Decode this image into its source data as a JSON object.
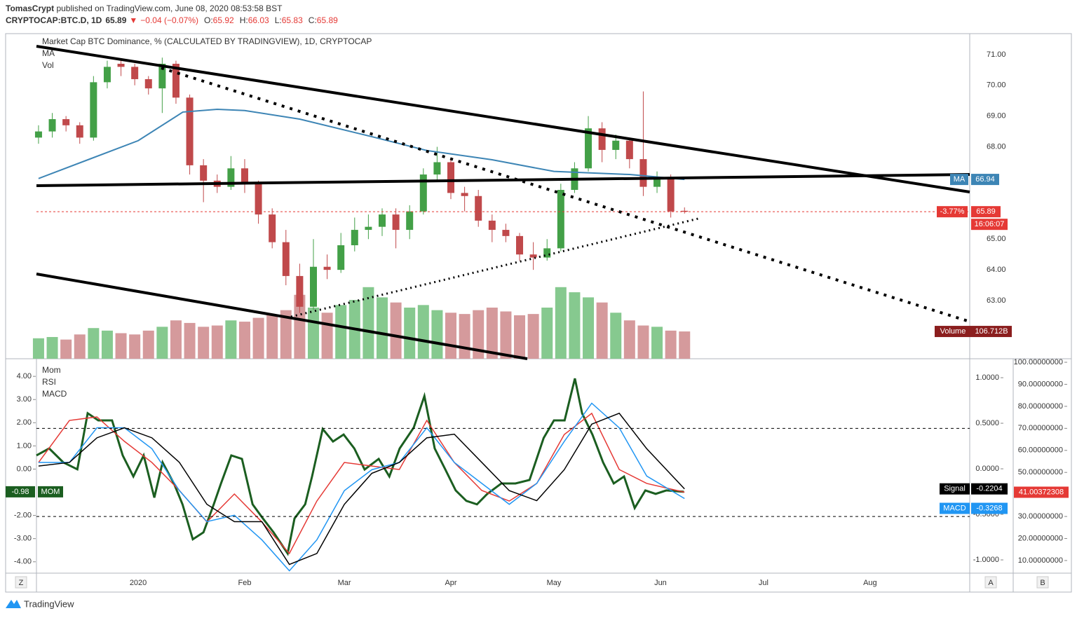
{
  "header": {
    "author": "TomasCrypt",
    "published": " published on TradingView.com, June 08, 2020 08:53:58 BST",
    "symbol": "CRYPTOCAP:BTC.D, 1D",
    "last": 65.89,
    "arrow": "▼",
    "change": "−0.04 (−0.07%)",
    "ohlc": [
      {
        "k": "O:",
        "v": 65.92
      },
      {
        "k": "H:",
        "v": 66.03
      },
      {
        "k": "L:",
        "v": 65.83
      },
      {
        "k": "C:",
        "v": 65.89
      }
    ]
  },
  "chart_data": [
    {
      "type": "candlestick",
      "title": "Market Cap BTC Dominance, % (CALCULATED BY TRADINGVIEW), 1D, CRYPTOCAP",
      "xlim": [
        -29.6,
        242
      ],
      "xticks": [
        {
          "value": 0,
          "label": "2020"
        },
        {
          "value": 31,
          "label": "Feb"
        },
        {
          "value": 60,
          "label": "Mar"
        },
        {
          "value": 91,
          "label": "Apr"
        },
        {
          "value": 121,
          "label": "May"
        },
        {
          "value": 152,
          "label": "Jun"
        },
        {
          "value": 182,
          "label": "Jul"
        },
        {
          "value": 213,
          "label": "Aug"
        }
      ],
      "ylim": [
        61.11,
        71.68
      ],
      "yticks": [
        {
          "value": 63,
          "label": "63.00"
        },
        {
          "value": 64,
          "label": "64.00"
        },
        {
          "value": 65,
          "label": "65.00"
        },
        {
          "value": 68,
          "label": "68.00"
        },
        {
          "value": 69,
          "label": "69.00"
        },
        {
          "value": 70,
          "label": "70.00"
        },
        {
          "value": 71,
          "label": "71.00"
        }
      ],
      "grid": true,
      "up_color": "#43a047",
      "down_color": "#c0494b",
      "x": [
        -29,
        -25,
        -21,
        -17,
        -13,
        -9,
        -5,
        -1,
        3,
        7,
        11,
        15,
        19,
        23,
        27,
        31,
        35,
        39,
        43,
        47,
        51,
        55,
        59,
        63,
        67,
        71,
        75,
        79,
        83,
        87,
        91,
        95,
        99,
        103,
        107,
        111,
        115,
        119,
        123,
        127,
        131,
        135,
        139,
        143,
        147,
        151,
        155,
        159
      ],
      "open": [
        68.3,
        68.5,
        68.9,
        68.7,
        68.3,
        70.1,
        70.7,
        70.6,
        70.2,
        69.9,
        70.7,
        69.6,
        67.4,
        66.9,
        66.7,
        67.3,
        66.8,
        65.8,
        64.9,
        63.8,
        62.8,
        64.1,
        64.0,
        64.8,
        65.3,
        65.4,
        65.8,
        65.3,
        65.9,
        67.1,
        67.5,
        66.5,
        66.4,
        65.6,
        65.3,
        65.1,
        64.5,
        64.4,
        64.7,
        66.6,
        67.3,
        68.6,
        67.9,
        68.2,
        67.6,
        66.7,
        67.0,
        65.92
      ],
      "high": [
        68.7,
        69.1,
        69.0,
        68.8,
        70.3,
        70.8,
        70.8,
        70.7,
        70.3,
        70.9,
        70.8,
        69.7,
        67.6,
        67.1,
        67.7,
        67.6,
        66.9,
        66.0,
        65.3,
        64.2,
        65.0,
        64.5,
        65.2,
        65.7,
        65.8,
        66.0,
        66.0,
        66.1,
        67.3,
        68.0,
        67.6,
        66.7,
        66.6,
        65.8,
        65.5,
        65.2,
        64.9,
        65.0,
        66.8,
        67.5,
        69.0,
        68.8,
        68.4,
        68.3,
        69.8,
        67.2,
        67.1,
        66.03
      ],
      "low": [
        68.1,
        68.3,
        68.5,
        68.1,
        68.2,
        69.9,
        70.3,
        70.0,
        69.7,
        69.1,
        69.4,
        67.1,
        66.2,
        66.5,
        66.6,
        66.5,
        65.5,
        64.7,
        63.5,
        62.6,
        62.7,
        63.7,
        63.9,
        64.6,
        65.0,
        65.1,
        64.7,
        65.0,
        65.8,
        66.9,
        66.3,
        65.9,
        65.4,
        64.9,
        64.9,
        64.3,
        64.0,
        64.3,
        64.6,
        66.5,
        67.2,
        67.5,
        67.6,
        67.3,
        66.4,
        66.5,
        65.7,
        65.83
      ],
      "close": [
        68.5,
        68.9,
        68.7,
        68.3,
        70.1,
        70.6,
        70.6,
        70.2,
        69.9,
        70.7,
        69.6,
        67.4,
        66.9,
        66.7,
        67.3,
        66.8,
        65.8,
        64.9,
        63.8,
        62.8,
        64.1,
        64.0,
        64.8,
        65.3,
        65.4,
        65.8,
        65.3,
        65.9,
        67.1,
        67.5,
        66.5,
        66.4,
        65.6,
        65.3,
        65.1,
        64.5,
        64.4,
        64.7,
        66.6,
        67.3,
        68.6,
        67.9,
        68.2,
        67.6,
        66.7,
        67.0,
        65.9,
        65.89
      ],
      "volume": {
        "name": "Vol",
        "box": "Volume",
        "label": "106.712B",
        "up_color": "#86c98f",
        "down_color": "#d59a9c",
        "box_color": "#8b1e1e",
        "values": [
          80,
          85,
          75,
          95,
          120,
          110,
          100,
          95,
          110,
          125,
          150,
          140,
          125,
          130,
          150,
          145,
          160,
          170,
          190,
          250,
          200,
          180,
          210,
          230,
          280,
          240,
          220,
          200,
          210,
          190,
          180,
          175,
          190,
          200,
          185,
          170,
          175,
          200,
          280,
          260,
          240,
          220,
          180,
          150,
          130,
          125,
          110,
          106.712
        ]
      },
      "ma": {
        "name": "MA",
        "color": "#3d85b5",
        "x": [
          -29,
          0,
          13,
          23,
          31,
          47,
          68,
          84,
          103,
          121,
          143,
          159
        ],
        "values": [
          66.97,
          68.2,
          69.13,
          69.22,
          69.18,
          68.9,
          68.33,
          67.88,
          67.58,
          67.2,
          67.1,
          66.94
        ]
      },
      "change_label": "-3.77%",
      "countdown": "16:06:07",
      "price_color": "#e53935"
    },
    {
      "type": "line",
      "legend": [
        "Mom",
        "RSI",
        "MACD"
      ],
      "ylim": [
        -4.46,
        4.76
      ],
      "yticks": [
        {
          "value": 4,
          "label": "4.00"
        },
        {
          "value": 3,
          "label": "3.00"
        },
        {
          "value": 2,
          "label": "2.00"
        },
        {
          "value": 1,
          "label": "1.00"
        },
        {
          "value": 0,
          "label": "0.00"
        },
        {
          "value": -2,
          "label": "-2.00"
        },
        {
          "value": -3,
          "label": "-3.00"
        },
        {
          "value": -4,
          "label": "-4.00"
        }
      ],
      "y2lim": [
        -1.138,
        1.208
      ],
      "y2ticks": [
        {
          "value": 1,
          "label": "1.0000"
        },
        {
          "value": 0.5,
          "label": "0.5000"
        },
        {
          "value": 0,
          "label": "0.0000"
        },
        {
          "value": -0.5,
          "label": "-0.5000"
        },
        {
          "value": -1,
          "label": "-1.0000"
        }
      ],
      "y3lim": [
        4.58,
        101.6
      ],
      "y3ticks": [
        {
          "value": 100,
          "label": "100.00000000"
        },
        {
          "value": 90,
          "label": "90.00000000"
        },
        {
          "value": 80,
          "label": "80.00000000"
        },
        {
          "value": 70,
          "label": "70.00000000"
        },
        {
          "value": 60,
          "label": "60.00000000"
        },
        {
          "value": 50,
          "label": "50.00000000"
        },
        {
          "value": 40,
          "label": "40.00000000"
        },
        {
          "value": 30,
          "label": "30.00000000"
        },
        {
          "value": 20,
          "label": "20.00000000"
        },
        {
          "value": 10,
          "label": "10.00000000"
        }
      ],
      "rsi_bands": [
        70,
        30
      ],
      "x": [
        -29,
        -20,
        -12,
        -4,
        4,
        12,
        20,
        28,
        36,
        44,
        52,
        60,
        68,
        76,
        84,
        92,
        100,
        108,
        116,
        124,
        132,
        140,
        148,
        159
      ],
      "series": [
        {
          "name": "MOM",
          "axis": "y",
          "color": "#1b5e20",
          "x": [
            -29.6,
            -25.9,
            -21.8,
            -17.7,
            -14.7,
            -11.6,
            -7.6,
            -4.5,
            -1.4,
            1.6,
            4.7,
            7.1,
            10.4,
            12.9,
            15.9,
            19.0,
            22.0,
            24.1,
            27.1,
            30.2,
            33.3,
            36.3,
            39.4,
            43.5,
            45.5,
            48.6,
            50.6,
            53.7,
            56.7,
            59.8,
            62.9,
            65.9,
            70.0,
            73.1,
            76.1,
            80.2,
            83.3,
            86.3,
            89.4,
            92.4,
            95.5,
            98.6,
            101.6,
            105.7,
            109.8,
            113.9,
            118.0,
            121.0,
            124.1,
            127.1,
            129.2,
            132.2,
            135.3,
            138.4,
            141.4,
            144.5,
            147.6,
            150.6,
            153.7,
            158.8
          ],
          "values": [
            0.59,
            0.89,
            0.29,
            -0.01,
            2.41,
            2.1,
            2.1,
            0.59,
            -0.32,
            0.59,
            -1.23,
            0.29,
            -0.62,
            -1.52,
            -3.03,
            -2.73,
            -1.52,
            -0.62,
            0.59,
            0.44,
            -1.52,
            -2.13,
            -2.73,
            -3.64,
            -2.13,
            -1.52,
            -0.32,
            1.73,
            1.19,
            1.49,
            0.89,
            -0.02,
            0.44,
            -0.32,
            0.89,
            1.79,
            3.15,
            0.89,
            -0.02,
            -0.92,
            -1.37,
            -1.52,
            -1.07,
            -0.62,
            -0.62,
            -0.47,
            1.34,
            2.1,
            2.1,
            3.91,
            2.4,
            1.49,
            0.29,
            -0.62,
            -0.32,
            -1.68,
            -0.92,
            -1.07,
            -0.92,
            -0.98
          ]
        },
        {
          "name": "RSI",
          "axis": "y3",
          "color": "#e53935",
          "values": [
            54.5,
            73.6,
            75.2,
            64.1,
            54.5,
            41.8,
            27.5,
            40.2,
            27.5,
            13.2,
            37.0,
            54.5,
            52.9,
            51.3,
            73.6,
            54.5,
            41.8,
            37.0,
            45.0,
            67.2,
            76.8,
            51.3,
            45.0,
            41.00372308
          ]
        },
        {
          "name": "MACD",
          "axis": "y2",
          "color": "#2196f3",
          "values": [
            0.07,
            0.07,
            0.45,
            0.45,
            0.22,
            -0.24,
            -0.58,
            -0.51,
            -0.78,
            -1.12,
            -0.78,
            -0.24,
            -0.01,
            0.07,
            0.45,
            0.07,
            -0.16,
            -0.39,
            -0.16,
            0.3,
            0.72,
            0.45,
            -0.08,
            -0.3268
          ]
        },
        {
          "name": "Signal",
          "axis": "y2",
          "color": "#000000",
          "values": [
            0.03,
            0.07,
            0.34,
            0.45,
            0.34,
            0.07,
            -0.39,
            -0.58,
            -0.58,
            -1.05,
            -0.93,
            -0.39,
            -0.05,
            0.07,
            0.34,
            0.38,
            0.07,
            -0.24,
            -0.35,
            -0.01,
            0.49,
            0.61,
            0.22,
            -0.2204
          ]
        }
      ]
    }
  ],
  "toolbar": {
    "left": "Z",
    "auto": "A",
    "extra": "B"
  },
  "footer": {
    "brand": "TradingView"
  }
}
